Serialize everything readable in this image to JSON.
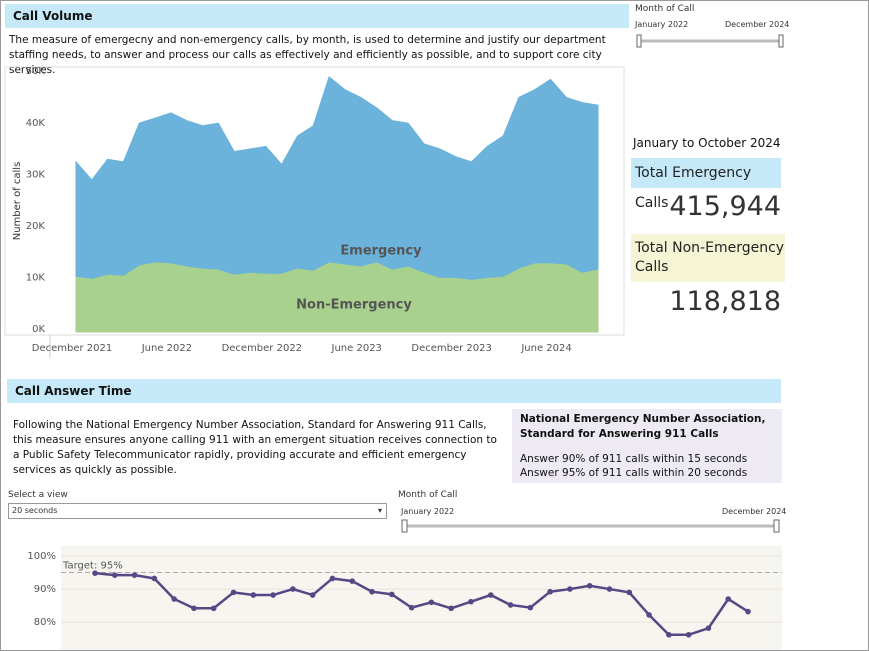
{
  "call_volume": {
    "header": "Call Volume",
    "description": "The measure of emergecny and non-emergency calls, by month, is used to determine and justify our department staffing needs, to answer and process our calls as effectively and efficiently as possible, and to support core city services."
  },
  "month_filter_1": {
    "label": "Month of Call",
    "start": "January 2022",
    "end": "December 2024"
  },
  "kpis": {
    "period": "January to October 2024",
    "emergency_label": "Total Emergency Calls",
    "emergency_value": "415,944",
    "non_emergency_label": "Total Non-Emergency Calls",
    "non_emergency_value": "118,818"
  },
  "call_answer_time": {
    "header": "Call Answer Time",
    "description": "Following the National Emergency Number Association, Standard for Answering 911 Calls, this measure ensures anyone calling 911 with an emergent situation receives connection to a Public Safety Telecommunicator rapidly, providing accurate and efficient emergency services as quickly as possible.",
    "standard_title": "National Emergency Number Association, Standard for Answering 911 Calls",
    "standard_lines": [
      "Answer 90% of 911 calls within 15 seconds",
      "Answer 95% of 911 calls within 20 seconds"
    ]
  },
  "view_select": {
    "label": "Select a view",
    "value": "20 seconds"
  },
  "month_filter_2": {
    "label": "Month of Call",
    "start": "January 2022",
    "end": "December 2024"
  },
  "chart_data": [
    {
      "type": "area",
      "stacked": true,
      "y_label": "Number of calls",
      "categories": [
        "December 2021",
        null,
        null,
        null,
        null,
        null,
        "June 2022",
        null,
        null,
        null,
        null,
        null,
        "December 2022",
        null,
        null,
        null,
        null,
        null,
        "June 2023",
        null,
        null,
        null,
        null,
        null,
        "December 2023",
        null,
        null,
        null,
        null,
        null,
        "June 2024",
        null,
        null,
        null
      ],
      "series": [
        {
          "name": "Non-Emergency",
          "color": "#a9d18e",
          "values": [
            10.8,
            10.4,
            11.2,
            11.0,
            13.0,
            13.6,
            13.4,
            12.8,
            12.4,
            12.2,
            11.2,
            11.6,
            11.4,
            11.4,
            12.4,
            12.0,
            13.6,
            13.2,
            12.8,
            13.6,
            12.2,
            12.8,
            11.6,
            10.6,
            10.6,
            10.2,
            10.6,
            10.8,
            12.4,
            13.4,
            13.4,
            13.2,
            11.6,
            12.2
          ]
        },
        {
          "name": "Emergency",
          "color": "#6bb3da",
          "values": [
            22.2,
            19.1,
            22.3,
            22.0,
            27.5,
            27.9,
            29.1,
            28.2,
            27.6,
            28.3,
            23.8,
            23.9,
            24.6,
            21.1,
            25.6,
            28.0,
            35.9,
            33.8,
            32.7,
            29.9,
            28.8,
            27.7,
            24.9,
            24.9,
            23.4,
            22.8,
            25.4,
            27.2,
            33.1,
            33.6,
            35.6,
            32.3,
            32.9,
            31.8
          ]
        }
      ],
      "ylim": [
        0,
        51.4
      ],
      "yticks": [
        {
          "value": 0,
          "label": "0K"
        },
        {
          "value": 10,
          "label": "10K"
        },
        {
          "value": 20,
          "label": "20K"
        },
        {
          "value": 30,
          "label": "30K"
        },
        {
          "value": 40,
          "label": "40K"
        },
        {
          "value": 50,
          "label": "50K"
        }
      ]
    },
    {
      "type": "line",
      "color": "#574785",
      "markers": true,
      "categories": [
        null,
        null,
        null,
        null,
        null,
        null,
        null,
        null,
        null,
        null,
        null,
        null,
        null,
        null,
        null,
        null,
        null,
        null,
        null,
        null,
        null,
        null,
        null,
        null,
        null,
        null,
        null,
        null,
        null,
        null,
        null,
        null,
        null,
        null
      ],
      "values": [
        94.8,
        94.2,
        94.2,
        93.2,
        87.0,
        84.2,
        84.2,
        89.0,
        88.2,
        88.2,
        90.0,
        88.2,
        93.2,
        92.4,
        89.2,
        88.4,
        84.4,
        86.0,
        84.2,
        86.2,
        88.2,
        85.2,
        84.4,
        89.2,
        90.0,
        91.0,
        90.0,
        89.0,
        82.2,
        76.2,
        76.2,
        78.2,
        87.0,
        83.2
      ],
      "ylim": [
        71,
        103
      ],
      "yticks": [
        {
          "value": 80,
          "label": "80%"
        },
        {
          "value": 90,
          "label": "90%"
        },
        {
          "value": 100,
          "label": "100%"
        }
      ],
      "target": {
        "value": 95,
        "label": "Target: 95%"
      }
    }
  ]
}
